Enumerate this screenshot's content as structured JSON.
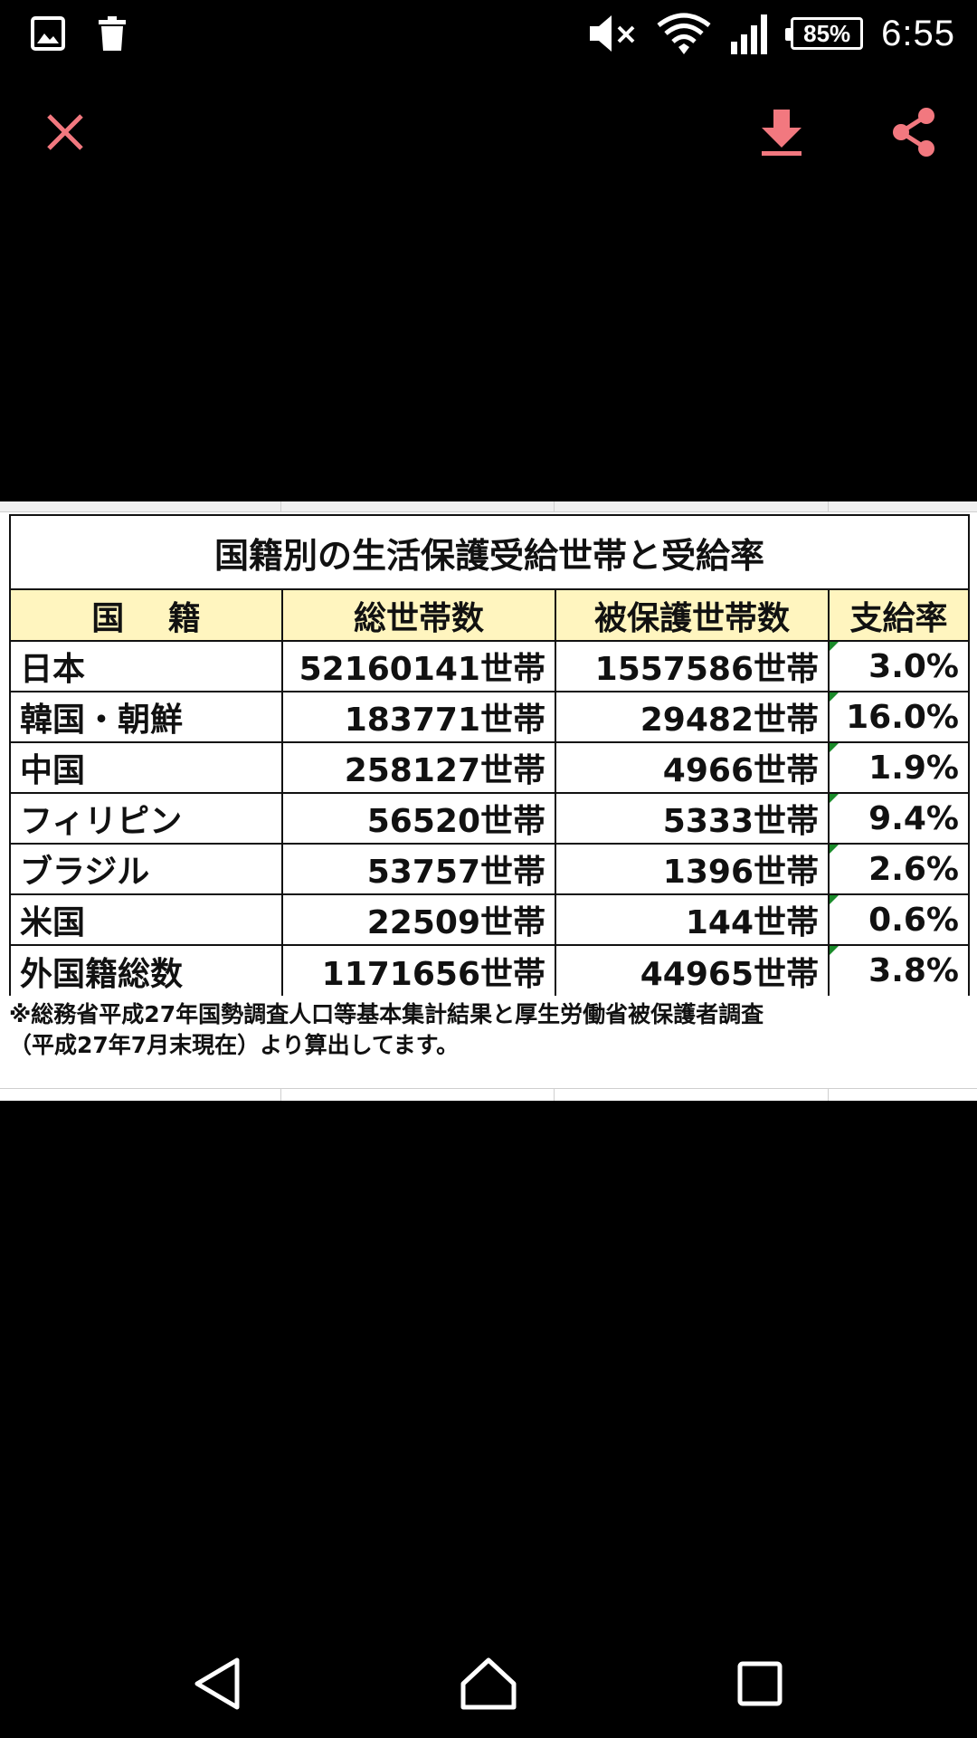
{
  "status_bar": {
    "battery": "85%",
    "time": "6:55",
    "icons": [
      "gallery-icon",
      "trash-icon",
      "mute-icon",
      "wifi-icon",
      "signal-icon",
      "battery-icon"
    ]
  },
  "toolbar": {
    "icons": [
      "close-icon",
      "download-icon",
      "share-icon"
    ],
    "accent_color": "#f2787f"
  },
  "table": {
    "title": "国籍別の生活保護受給世帯と受給率",
    "headers": [
      "国　 籍",
      "総世帯数",
      "被保護世帯数",
      "支給率"
    ],
    "header_bg": "#fff5bf",
    "rows": [
      {
        "country": "日本",
        "total": "52160141世帯",
        "protected": "1557586世帯",
        "rate": "3.0%"
      },
      {
        "country": "韓国・朝鮮",
        "total": "183771世帯",
        "protected": "29482世帯",
        "rate": "16.0%"
      },
      {
        "country": "中国",
        "total": "258127世帯",
        "protected": "4966世帯",
        "rate": "1.9%"
      },
      {
        "country": "フィリピン",
        "total": "56520世帯",
        "protected": "5333世帯",
        "rate": "9.4%"
      },
      {
        "country": "ブラジル",
        "total": "53757世帯",
        "protected": "1396世帯",
        "rate": "2.6%"
      },
      {
        "country": "米国",
        "total": "22509世帯",
        "protected": "144世帯",
        "rate": "0.6%"
      },
      {
        "country": "外国籍総数",
        "total": "1171656世帯",
        "protected": "44965世帯",
        "rate": "3.8%"
      }
    ],
    "footnote_line1": "※総務省平成27年国勢調査人口等基本集計結果と厚生労働省被保護者調査",
    "footnote_line2": "（平成27年7月末現在）より算出してます。"
  },
  "nav_bar": {
    "icons": [
      "back-icon",
      "home-icon",
      "recent-apps-icon"
    ]
  }
}
